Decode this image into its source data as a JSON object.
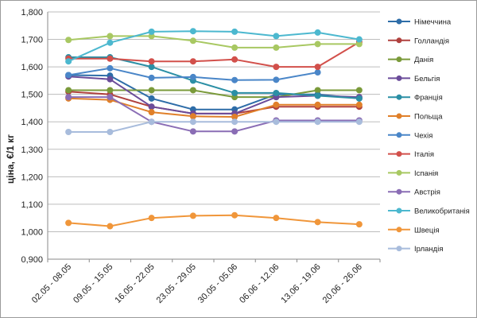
{
  "chart_data": {
    "type": "line",
    "title": "",
    "xlabel": "",
    "ylabel": "ціна, €/1 кг",
    "ylim": [
      0.9,
      1.8
    ],
    "yticks": [
      "0,900",
      "1,000",
      "1,100",
      "1,200",
      "1,300",
      "1,400",
      "1,500",
      "1,600",
      "1,700",
      "1,800"
    ],
    "ytick_values": [
      0.9,
      1.0,
      1.1,
      1.2,
      1.3,
      1.4,
      1.5,
      1.6,
      1.7,
      1.8
    ],
    "grid": true,
    "legend_position": "right",
    "categories": [
      "02.05 - 08.05",
      "09.05 - 15.05",
      "16.05 - 22.05",
      "23.05 - 29.05",
      "30.05 - 05.06",
      "06.06 - 12.06",
      "13.06 - 19.06",
      "20.06 - 26.06"
    ],
    "series": [
      {
        "name": "Німеччина",
        "color": "#2e6da8",
        "values": [
          1.57,
          1.568,
          1.485,
          1.445,
          1.445,
          1.5,
          1.5,
          1.485
        ]
      },
      {
        "name": "Голландія",
        "color": "#b0413e",
        "values": [
          1.51,
          1.5,
          1.455,
          1.43,
          1.43,
          1.455,
          1.455,
          1.455
        ]
      },
      {
        "name": "Данія",
        "color": "#7a9a3a",
        "values": [
          1.515,
          1.515,
          1.515,
          1.515,
          1.49,
          1.49,
          1.515,
          1.515
        ]
      },
      {
        "name": "Бельгія",
        "color": "#6b4c9a",
        "values": [
          1.565,
          1.555,
          1.455,
          1.43,
          1.43,
          1.49,
          1.495,
          1.49
        ]
      },
      {
        "name": "Франція",
        "color": "#2b8fa5",
        "values": [
          1.635,
          1.635,
          1.6,
          1.55,
          1.505,
          1.505,
          1.495,
          1.485
        ]
      },
      {
        "name": "Польща",
        "color": "#e0802a",
        "values": [
          1.485,
          1.48,
          1.435,
          1.42,
          1.418,
          1.462,
          1.462,
          1.462
        ]
      },
      {
        "name": "Чехія",
        "color": "#4a86c8",
        "values": [
          1.57,
          1.595,
          1.56,
          1.563,
          1.552,
          1.553,
          1.58,
          null
        ]
      },
      {
        "name": "Італія",
        "color": "#d2504b",
        "values": [
          1.63,
          1.63,
          1.62,
          1.62,
          1.627,
          1.6,
          1.6,
          1.69
        ]
      },
      {
        "name": "Іспанія",
        "color": "#a8c862",
        "values": [
          1.698,
          1.712,
          1.712,
          1.695,
          1.67,
          1.67,
          1.683,
          1.683
        ]
      },
      {
        "name": "Австрія",
        "color": "#8a6db5",
        "values": [
          1.49,
          1.49,
          1.4,
          1.365,
          1.365,
          1.405,
          1.405,
          1.405
        ]
      },
      {
        "name": "Великобританія",
        "color": "#4cb8cf",
        "values": [
          1.62,
          1.688,
          1.728,
          1.73,
          1.728,
          1.712,
          1.725,
          1.7
        ]
      },
      {
        "name": "Швеція",
        "color": "#f0963a",
        "values": [
          1.032,
          1.02,
          1.05,
          1.058,
          1.06,
          1.05,
          1.035,
          1.027
        ]
      },
      {
        "name": "Ірландія",
        "color": "#a8bcdc",
        "values": [
          1.363,
          1.363,
          1.4,
          1.4,
          1.4,
          1.4,
          1.4,
          1.4
        ]
      }
    ]
  }
}
